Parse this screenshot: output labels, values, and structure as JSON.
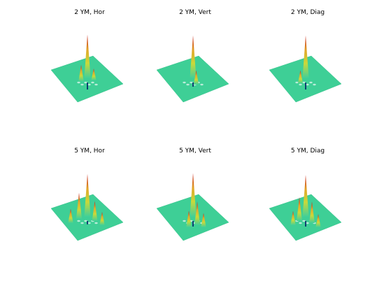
{
  "figure": {
    "panels": [
      {
        "title": "2 YM, Hor",
        "spikes": [
          {
            "h": 0.92,
            "dx": 0.0,
            "dy": 0.0
          },
          {
            "h": 0.35,
            "dx": -0.06,
            "dy": 0.03
          },
          {
            "h": 0.25,
            "dx": 0.06,
            "dy": 0.02
          }
        ],
        "down": 0.25
      },
      {
        "title": "2 YM, Vert",
        "spikes": [
          {
            "h": 0.9,
            "dx": 0.0,
            "dy": 0.0
          },
          {
            "h": 0.3,
            "dx": 0.03,
            "dy": 0.06
          }
        ],
        "down": 0.15
      },
      {
        "title": "2 YM, Diag",
        "spikes": [
          {
            "h": 0.9,
            "dx": 0.0,
            "dy": 0.0
          },
          {
            "h": 0.28,
            "dx": -0.05,
            "dy": 0.05
          }
        ],
        "down": 0.25
      },
      {
        "title": "5 YM, Hor",
        "spikes": [
          {
            "h": 0.9,
            "dx": 0.0,
            "dy": 0.0
          },
          {
            "h": 0.55,
            "dx": -0.08,
            "dy": 0.02
          },
          {
            "h": 0.42,
            "dx": 0.07,
            "dy": 0.04
          },
          {
            "h": 0.3,
            "dx": -0.16,
            "dy": 0.06
          },
          {
            "h": 0.28,
            "dx": 0.14,
            "dy": 0.08
          }
        ],
        "down": 0.12
      },
      {
        "title": "5 YM, Vert",
        "spikes": [
          {
            "h": 0.92,
            "dx": 0.0,
            "dy": 0.0
          },
          {
            "h": 0.5,
            "dx": 0.04,
            "dy": 0.08
          },
          {
            "h": 0.35,
            "dx": -0.04,
            "dy": 0.1
          },
          {
            "h": 0.3,
            "dx": 0.1,
            "dy": 0.1
          }
        ],
        "down": 0.2
      },
      {
        "title": "5 YM, Diag",
        "spikes": [
          {
            "h": 0.88,
            "dx": 0.0,
            "dy": 0.0
          },
          {
            "h": 0.5,
            "dx": -0.06,
            "dy": 0.04
          },
          {
            "h": 0.45,
            "dx": 0.06,
            "dy": 0.06
          },
          {
            "h": 0.3,
            "dx": -0.12,
            "dy": 0.08
          },
          {
            "h": 0.28,
            "dx": 0.12,
            "dy": 0.1
          }
        ],
        "down": 0.2
      }
    ]
  }
}
